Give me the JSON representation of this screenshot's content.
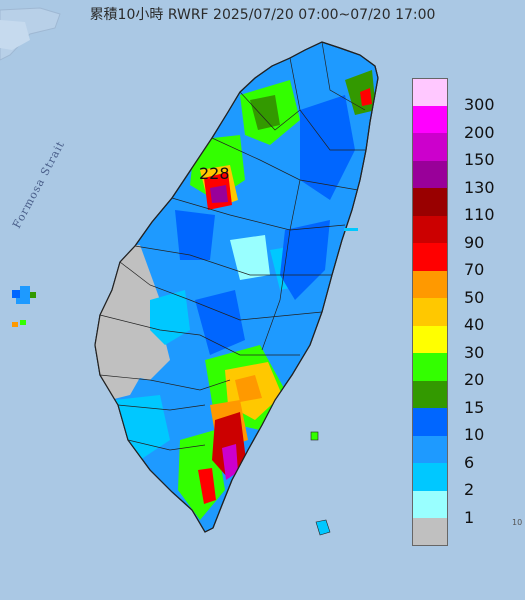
{
  "title": "累積10小時 RWRF 2025/07/20 07:00~07/20 17:00",
  "strait_label": "Formosa Strait",
  "max_value": "228",
  "edge_tick": "10",
  "legend": [
    {
      "label": "300",
      "color": "#ffc8ff"
    },
    {
      "label": "200",
      "color": "#ff00ff"
    },
    {
      "label": "150",
      "color": "#cc00cc"
    },
    {
      "label": "130",
      "color": "#990099"
    },
    {
      "label": "110",
      "color": "#990000"
    },
    {
      "label": "90",
      "color": "#cc0000"
    },
    {
      "label": "70",
      "color": "#ff0000"
    },
    {
      "label": "50",
      "color": "#ff9900"
    },
    {
      "label": "40",
      "color": "#ffc800"
    },
    {
      "label": "30",
      "color": "#ffff00"
    },
    {
      "label": "20",
      "color": "#33ff00"
    },
    {
      "label": "15",
      "color": "#339900"
    },
    {
      "label": "10",
      "color": "#0066ff"
    },
    {
      "label": "6",
      "color": "#1e9aff"
    },
    {
      "label": "2",
      "color": "#00c8ff"
    },
    {
      "label": "1",
      "color": "#99ffff"
    },
    {
      "label": "",
      "color": "#c0c0c0"
    }
  ]
}
